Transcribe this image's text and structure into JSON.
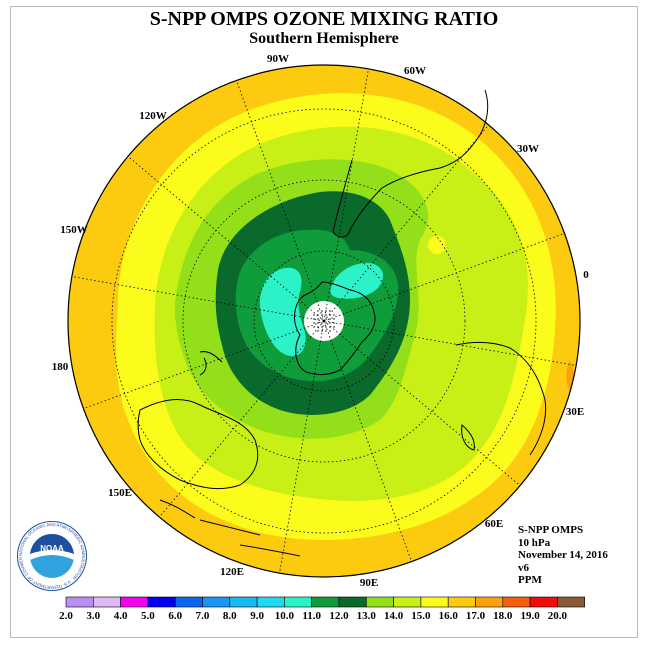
{
  "header": {
    "title": "S-NPP OMPS OZONE MIXING RATIO",
    "subtitle": "Southern Hemisphere"
  },
  "map": {
    "projection": "south polar stereographic",
    "pole_fill": "#ffffff",
    "longitude_labels": [
      "90W",
      "60W",
      "30W",
      "0",
      "30E",
      "60E",
      "90E",
      "120E",
      "150E",
      "180",
      "150W",
      "120W"
    ]
  },
  "info": {
    "product": "S-NPP OMPS",
    "level": "10 hPa",
    "date": "November 14, 2016",
    "version": "v6",
    "units": "PPM"
  },
  "logo": {
    "text": "NOAA",
    "ring_text": "NATIONAL OCEANIC AND ATMOSPHERIC ADMINISTRATION · U.S. DEPARTMENT OF COMMERCE",
    "colors": {
      "ring": "#ffffff",
      "inner_top": "#1f4fa0",
      "inner_bottom": "#31a2dd",
      "gull": "#ffffff"
    }
  },
  "colorbar": {
    "labels": [
      "2.0",
      "3.0",
      "4.0",
      "5.0",
      "6.0",
      "7.0",
      "8.0",
      "9.0",
      "10.0",
      "11.0",
      "12.0",
      "13.0",
      "14.0",
      "15.0",
      "16.0",
      "17.0",
      "18.0",
      "19.0",
      "20.0"
    ],
    "colors": [
      "#b98fef",
      "#dfb9f4",
      "#f200f2",
      "#0000f2",
      "#0a66f2",
      "#1b94f2",
      "#17baf2",
      "#21d9ef",
      "#2cf2c8",
      "#0f9c3a",
      "#0a6a2c",
      "#93e01a",
      "#c8f016",
      "#fcfc1c",
      "#fccb0f",
      "#fca30c",
      "#f75f0c",
      "#f20c0c",
      "#8a5a38"
    ]
  }
}
